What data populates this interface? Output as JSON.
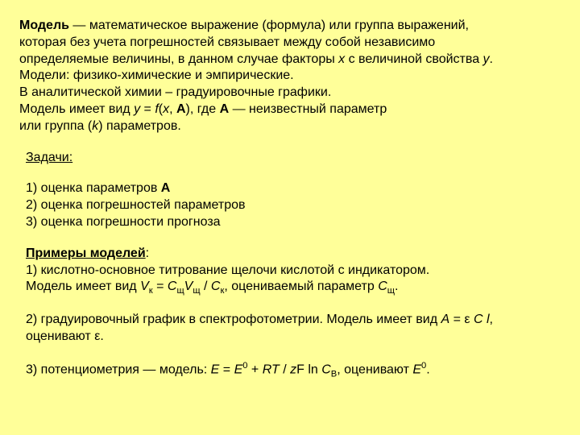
{
  "colors": {
    "background": "#ffff99",
    "text": "#000000"
  },
  "typography": {
    "font_family": "Arial",
    "font_size_pt": 12,
    "line_height": 1.3
  },
  "p1": {
    "bold_lead": "Модель",
    "l1_rest": " — математическое выражение (формула) или группа выражений,",
    "l2": "которая без учета погрешностей связывает между собой независимо",
    "l3a": "определяемые величины, в данном случае факторы ",
    "l3_x": "х",
    "l3b": " с величиной свойства ",
    "l3_y": "у",
    "l3c": ".",
    "l4": "Модели: физико-химические и эмпирические.",
    "l5": "В аналитической химии – градуировочные графики.",
    "l6a": "Модель имеет вид ",
    "l6_y": "у",
    "l6b": " = ",
    "l6_f": "f",
    "l6c": "(",
    "l6_x": "х",
    "l6d": ", ",
    "l6_A": "A",
    "l6e": "), где ",
    "l6_A2": "A",
    "l6f": " — неизвестный параметр",
    "l7a": "или группа (",
    "l7_k": "k",
    "l7b": ") параметров."
  },
  "p2": {
    "heading": "Задачи:"
  },
  "p3": {
    "l1a": "1) оценка параметров ",
    "l1_A": "A",
    "l2": "2) оценка погрешностей параметров",
    "l3": "3) оценка погрешности прогноза"
  },
  "p4": {
    "heading": "Примеры моделей",
    "colon": ":",
    "l1": "1) кислотно-основное титрование щелочи кислотой с индикатором.",
    "l2a": "Модель имеет вид ",
    "Vk": "V",
    "k_sub": "к",
    "eq": " = ",
    "Csh": "С",
    "sh_sub1": "щ",
    "Vsh": "V",
    "sh_sub2": "щ",
    "slash": "  / ",
    "Ck": "С",
    "k_sub2": "к",
    "l2b": ", оцениваемый параметр ",
    "Csh2": "С",
    "sh_sub3": "щ",
    "dot": "."
  },
  "p5": {
    "l1a": "2) градуировочный график в спектрофотометрии. Модель имеет вид ",
    "A": "А",
    "eq": " = ε ",
    "C": "C",
    "sp": " ",
    "l": "l",
    "comma": ",",
    "l2": "оценивают ε."
  },
  "p6": {
    "l1a": "3) потенциометрия — модель: ",
    "E": "E",
    "eq": " = ",
    "E0": "E",
    "sup0": "0",
    "plus": " + ",
    "RT": "RT",
    "slash": " / ",
    "zF_a": "z",
    "zF_b": "F",
    "ln": " ln ",
    "CB": "C",
    "B_sub": "B",
    "l1b": ", оценивают ",
    "E02": "E",
    "sup02": "0",
    "dot": "."
  }
}
